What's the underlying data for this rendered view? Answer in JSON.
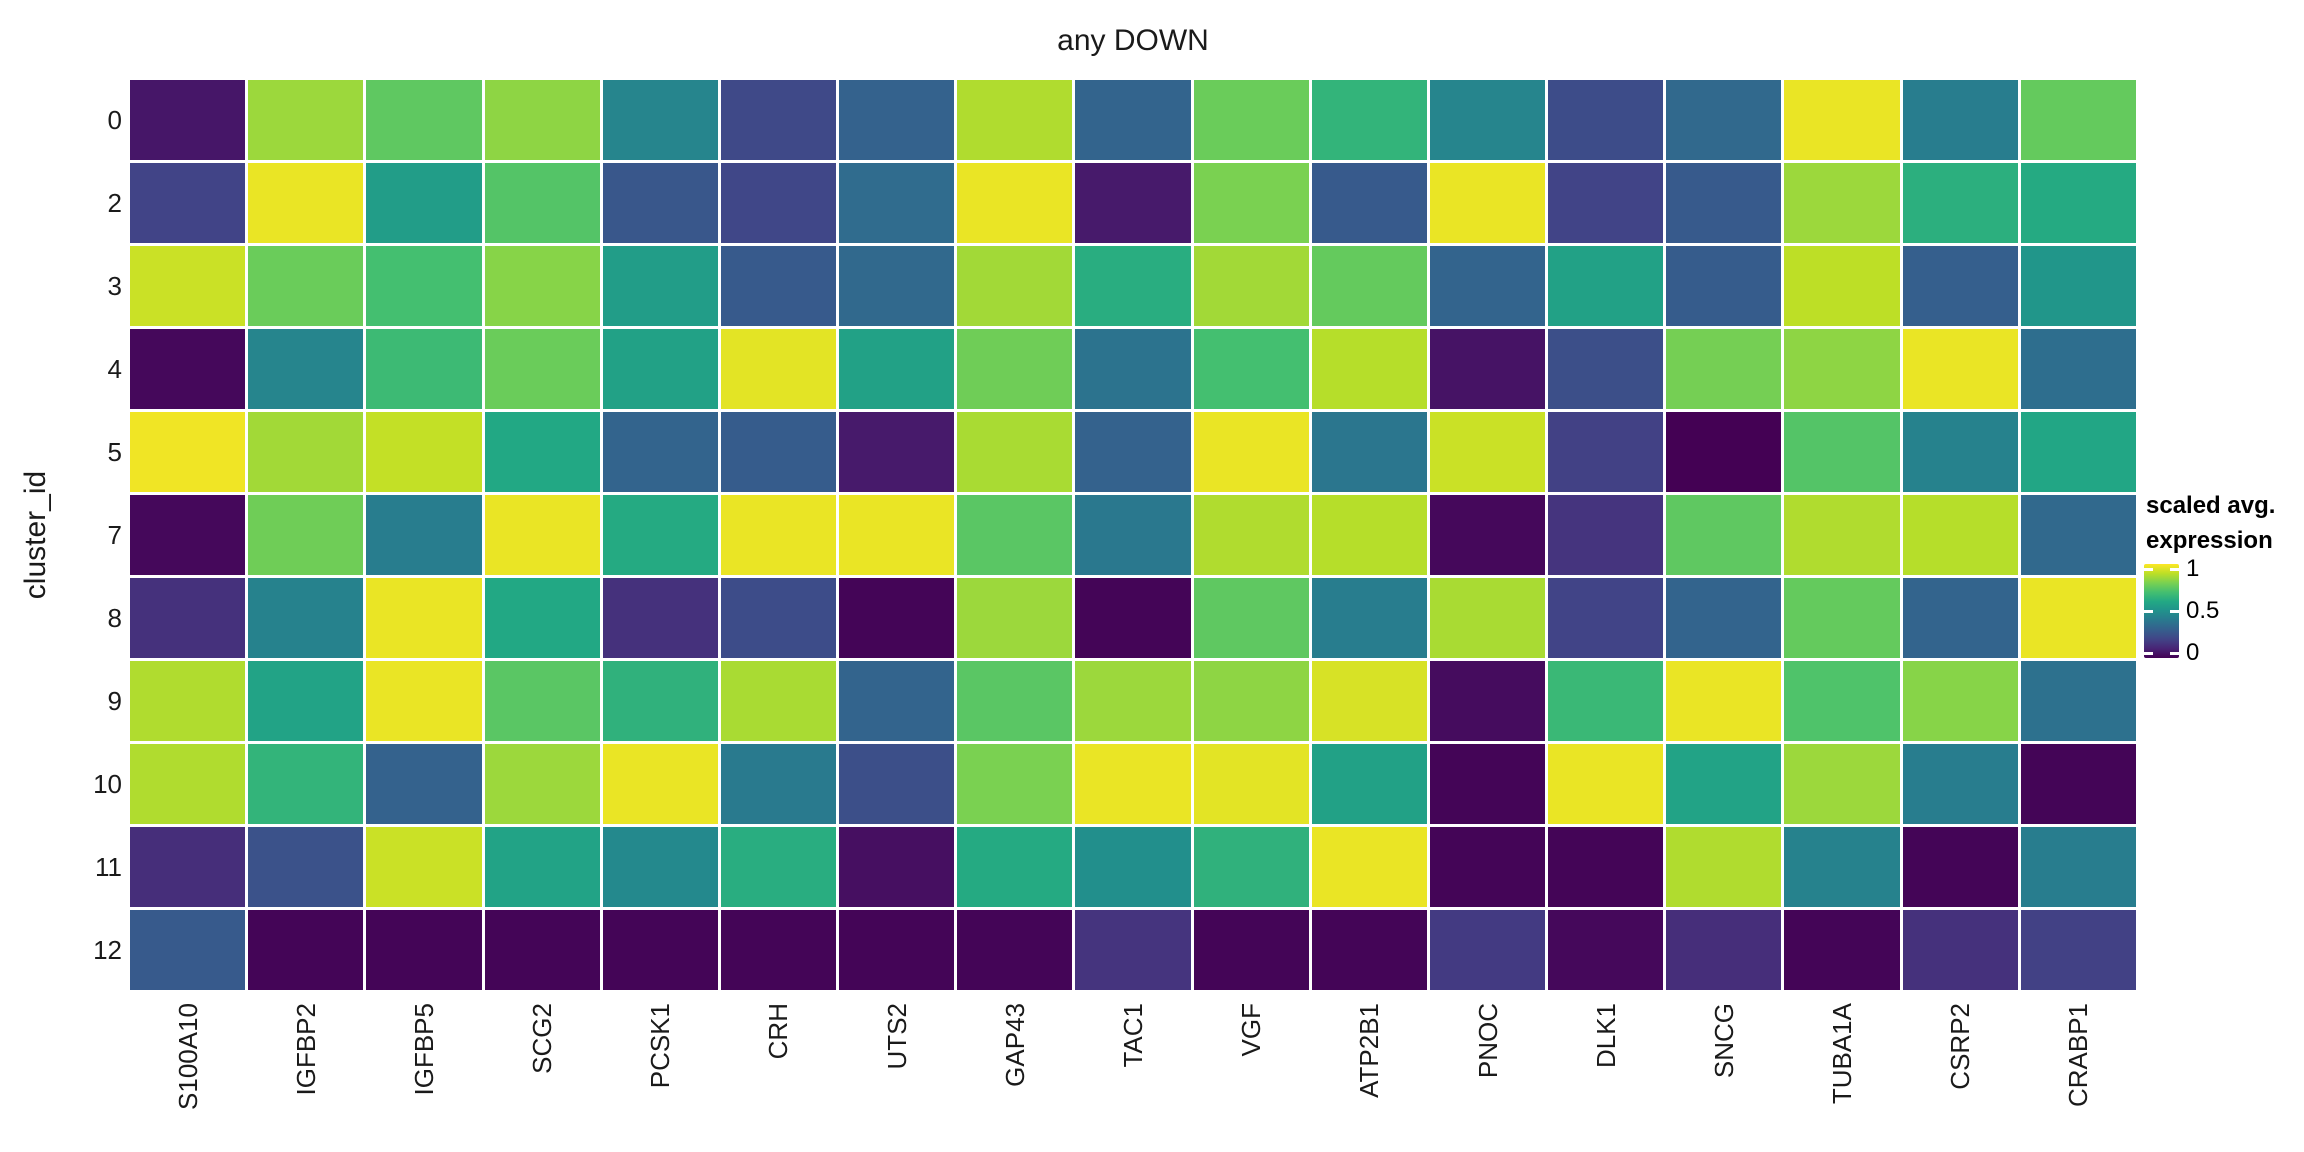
{
  "chart": {
    "title": "any DOWN"
  },
  "axes": {
    "y_title": "cluster_id"
  },
  "legend": {
    "title_line1": "scaled avg.",
    "title_line2": "expression",
    "tick_labels": [
      "1",
      "0.5",
      "0"
    ],
    "tick_values": [
      1,
      0.5,
      0
    ]
  },
  "colors": {
    "background": "#ffffff",
    "title_text": "#1a1a1a",
    "axis_text": "#1a1a1a",
    "cell_gap": "#ffffff",
    "viridis_stops": [
      "#440154",
      "#482475",
      "#414487",
      "#355F8D",
      "#2A788E",
      "#21918C",
      "#22A884",
      "#44BF70",
      "#7AD151",
      "#BDDF26",
      "#FDE725"
    ]
  },
  "chart_data": {
    "type": "heatmap",
    "title": "any DOWN",
    "xlabel": "",
    "ylabel": "cluster_id",
    "legend_title": "scaled avg. expression",
    "colorscale": "viridis",
    "domain": [
      0,
      1
    ],
    "grid": "white gaps between cells",
    "legend_position": "right",
    "columns": [
      "S100A10",
      "IGFBP2",
      "IGFBP5",
      "SCG2",
      "PCSK1",
      "CRH",
      "UTS2",
      "GAP43",
      "TAC1",
      "VGF",
      "ATP2B1",
      "PNOC",
      "DLK1",
      "SNCG",
      "TUBA1A",
      "CSRP2",
      "CRABP1"
    ],
    "rows": [
      "0",
      "2",
      "3",
      "4",
      "5",
      "7",
      "8",
      "9",
      "10",
      "11",
      "12"
    ],
    "values": [
      [
        0.06,
        0.85,
        0.75,
        0.83,
        0.45,
        0.22,
        0.31,
        0.88,
        0.32,
        0.77,
        0.65,
        0.45,
        0.23,
        0.34,
        0.97,
        0.42,
        0.76
      ],
      [
        0.2,
        0.97,
        0.55,
        0.73,
        0.27,
        0.21,
        0.35,
        0.97,
        0.07,
        0.8,
        0.28,
        0.97,
        0.2,
        0.28,
        0.85,
        0.63,
        0.61
      ],
      [
        0.92,
        0.77,
        0.7,
        0.82,
        0.55,
        0.28,
        0.34,
        0.86,
        0.62,
        0.86,
        0.76,
        0.32,
        0.57,
        0.29,
        0.9,
        0.3,
        0.52
      ],
      [
        0.02,
        0.45,
        0.68,
        0.77,
        0.57,
        0.96,
        0.57,
        0.78,
        0.38,
        0.7,
        0.89,
        0.05,
        0.24,
        0.79,
        0.83,
        0.97,
        0.36
      ],
      [
        0.98,
        0.86,
        0.91,
        0.6,
        0.32,
        0.29,
        0.07,
        0.87,
        0.31,
        0.97,
        0.39,
        0.92,
        0.19,
        0.0,
        0.73,
        0.44,
        0.59
      ],
      [
        0.02,
        0.78,
        0.42,
        0.97,
        0.61,
        0.97,
        0.97,
        0.74,
        0.4,
        0.88,
        0.89,
        0.02,
        0.15,
        0.75,
        0.88,
        0.89,
        0.34
      ],
      [
        0.14,
        0.44,
        0.97,
        0.6,
        0.14,
        0.23,
        0.01,
        0.85,
        0.01,
        0.75,
        0.42,
        0.87,
        0.2,
        0.32,
        0.76,
        0.32,
        0.97
      ],
      [
        0.88,
        0.58,
        0.97,
        0.74,
        0.64,
        0.87,
        0.32,
        0.74,
        0.85,
        0.83,
        0.94,
        0.03,
        0.67,
        0.97,
        0.72,
        0.82,
        0.37
      ],
      [
        0.88,
        0.65,
        0.31,
        0.85,
        0.97,
        0.41,
        0.24,
        0.8,
        0.97,
        0.96,
        0.57,
        0.01,
        0.97,
        0.58,
        0.85,
        0.42,
        0.01
      ],
      [
        0.13,
        0.25,
        0.92,
        0.58,
        0.47,
        0.62,
        0.04,
        0.61,
        0.49,
        0.64,
        0.97,
        0.01,
        0.01,
        0.88,
        0.44,
        0.01,
        0.42
      ],
      [
        0.28,
        0.01,
        0.01,
        0.01,
        0.01,
        0.01,
        0.01,
        0.01,
        0.15,
        0.01,
        0.01,
        0.17,
        0.02,
        0.13,
        0.01,
        0.14,
        0.19
      ]
    ]
  }
}
